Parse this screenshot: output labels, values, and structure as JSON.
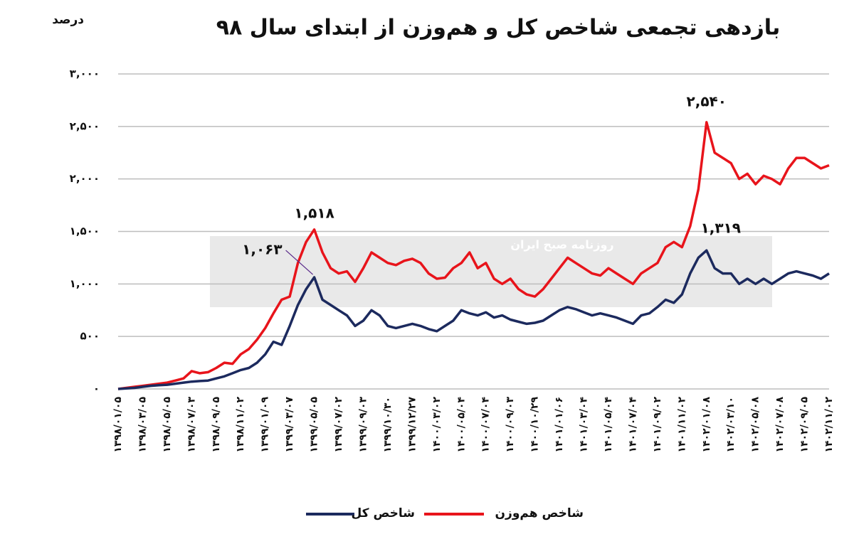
{
  "chart_data": {
    "type": "line",
    "title": "بازدهی تجمعی شاخص کل و هم‌وزن از ابتدای سال ۹۸",
    "y_label": "درصد",
    "watermark": "روزنامه صبح ایران",
    "categories": [
      "۱۳۹۸/۰۱/۰۵",
      null,
      null,
      "۱۳۹۸/۰۳/۰۵",
      null,
      null,
      "۱۳۹۸/۰۵/۰۵",
      null,
      null,
      "۱۳۹۸/۰۷/۰۳",
      null,
      null,
      "۱۳۹۸/۰۹/۰۵",
      null,
      null,
      "۱۳۹۸/۱۱/۰۲",
      null,
      null,
      "۱۳۹۹/۰۱/۰۹",
      null,
      null,
      "۱۳۹۹/۰۳/۰۷",
      null,
      null,
      "۱۳۹۹/۰۵/۰۵",
      null,
      null,
      "۱۳۹۹/۰۷/۰۲",
      null,
      null,
      "۱۳۹۹/۰۹/۰۳",
      null,
      null,
      "۱۳۹۹/۱۰/۳۰",
      null,
      null,
      "۱۳۹۹/۱۲/۲۷",
      null,
      null,
      "۱۴۰۰/۰۳/۰۲",
      null,
      null,
      "۱۴۰۰/۰۵/۰۴",
      null,
      null,
      "۱۴۰۰/۰۷/۰۴",
      null,
      null,
      "۱۴۰۰/۰۹/۰۳",
      null,
      null,
      "۱۴۰۰/۱۰/۲۹",
      null,
      null,
      "۱۴۰۱/۰۱/۰۶",
      null,
      null,
      "۱۴۰۱/۰۳/۰۴",
      null,
      null,
      "۱۴۰۱/۰۵/۰۴",
      null,
      null,
      "۱۴۰۱/۰۷/۰۴",
      null,
      null,
      "۱۴۰۱/۰۹/۰۲",
      null,
      null,
      "۱۴۰۱/۱۱/۰۲",
      null,
      null,
      "۱۴۰۲/۰۱/۰۸",
      null,
      null,
      "۱۴۰۲/۰۳/۱۰",
      null,
      null,
      "۱۴۰۲/۰۵/۰۸",
      null,
      null,
      "۱۴۰۲/۰۷/۰۸",
      null,
      null,
      "۱۴۰۲/۰۹/۰۵",
      null,
      null,
      "۱۴۰۲/۱۱/۰۲"
    ],
    "series": [
      {
        "name": "شاخص کل",
        "color": "#1c2a5e",
        "values": [
          0,
          5,
          10,
          20,
          30,
          35,
          40,
          50,
          60,
          70,
          75,
          80,
          100,
          120,
          150,
          180,
          200,
          250,
          330,
          450,
          420,
          600,
          800,
          950,
          1063,
          850,
          800,
          750,
          700,
          600,
          650,
          750,
          700,
          600,
          580,
          600,
          620,
          600,
          570,
          550,
          600,
          650,
          750,
          720,
          700,
          730,
          680,
          700,
          660,
          640,
          620,
          630,
          650,
          700,
          750,
          780,
          760,
          730,
          700,
          720,
          700,
          680,
          650,
          620,
          700,
          720,
          780,
          850,
          820,
          900,
          1100,
          1250,
          1319,
          1150,
          1100,
          1100,
          1000,
          1050,
          1000,
          1050,
          1000,
          1050,
          1100,
          1120,
          1100,
          1080,
          1050,
          1100
        ],
        "value_labels": [
          null,
          null,
          null,
          null,
          null,
          null,
          null,
          null,
          null,
          null,
          null,
          null,
          null,
          null,
          null,
          null,
          null,
          null,
          null,
          null,
          null,
          null,
          null,
          null,
          "۱,۰۶۳",
          null,
          null,
          null,
          null,
          null,
          null,
          null,
          null,
          null,
          null,
          null,
          null,
          null,
          null,
          null,
          null,
          null,
          null,
          null,
          null,
          null,
          null,
          null,
          null,
          null,
          null,
          null,
          null,
          null,
          null,
          null,
          null,
          null,
          null,
          null,
          null,
          null,
          null,
          null,
          null,
          null,
          null,
          null,
          null,
          null,
          null,
          null,
          "۱,۳۱۹",
          null,
          null,
          null,
          null,
          null,
          null,
          null,
          null,
          null,
          null,
          null,
          null,
          null,
          null,
          null
        ]
      },
      {
        "name": "شاخص هم‌وزن",
        "color": "#e8141b",
        "values": [
          0,
          10,
          20,
          30,
          40,
          50,
          60,
          80,
          100,
          170,
          150,
          160,
          200,
          250,
          240,
          330,
          380,
          470,
          580,
          720,
          850,
          880,
          1200,
          1400,
          1518,
          1300,
          1150,
          1100,
          1120,
          1020,
          1150,
          1300,
          1250,
          1200,
          1180,
          1220,
          1240,
          1200,
          1100,
          1050,
          1060,
          1150,
          1200,
          1300,
          1150,
          1200,
          1050,
          1000,
          1050,
          950,
          900,
          880,
          950,
          1050,
          1150,
          1250,
          1200,
          1150,
          1100,
          1080,
          1150,
          1100,
          1050,
          1000,
          1100,
          1150,
          1200,
          1350,
          1400,
          1350,
          1550,
          1900,
          2540,
          2250,
          2200,
          2150,
          2000,
          2050,
          1950,
          2030,
          2000,
          1950,
          2100,
          2200,
          2200,
          2150,
          2100,
          2130
        ],
        "value_labels": [
          null,
          null,
          null,
          null,
          null,
          null,
          null,
          null,
          null,
          null,
          null,
          null,
          null,
          null,
          null,
          null,
          null,
          null,
          null,
          null,
          null,
          null,
          null,
          null,
          "۱,۵۱۸",
          null,
          null,
          null,
          null,
          null,
          null,
          null,
          null,
          null,
          null,
          null,
          null,
          null,
          null,
          null,
          null,
          null,
          null,
          null,
          null,
          null,
          null,
          null,
          null,
          null,
          null,
          null,
          null,
          null,
          null,
          null,
          null,
          null,
          null,
          null,
          null,
          null,
          null,
          null,
          null,
          null,
          null,
          null,
          null,
          null,
          null,
          null,
          "۲,۵۴۰",
          null,
          null,
          null,
          null,
          null,
          null,
          null,
          null,
          null,
          null,
          null,
          null,
          null,
          null,
          null
        ]
      }
    ],
    "ylim": [
      0,
      3000
    ],
    "yticks": [
      {
        "value": 0,
        "label": "۰"
      },
      {
        "value": 500,
        "label": "۵۰۰"
      },
      {
        "value": 1000,
        "label": "۱,۰۰۰"
      },
      {
        "value": 1500,
        "label": "۱,۵۰۰"
      },
      {
        "value": 2000,
        "label": "۲,۰۰۰"
      },
      {
        "value": 2500,
        "label": "۲,۵۰۰"
      },
      {
        "value": 3000,
        "label": "۳,۰۰۰"
      }
    ],
    "grid": true
  }
}
